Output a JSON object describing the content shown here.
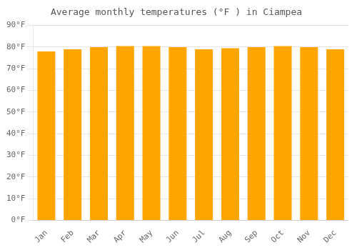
{
  "chart_data": {
    "type": "bar",
    "title": "Average monthly temperatures (°F ) in Ciampea",
    "categories": [
      "Jan",
      "Feb",
      "Mar",
      "Apr",
      "May",
      "Jun",
      "Jul",
      "Aug",
      "Sep",
      "Oct",
      "Nov",
      "Dec"
    ],
    "values": [
      78,
      79,
      80,
      80.5,
      80.5,
      80,
      79,
      79.5,
      80,
      80.5,
      80,
      79
    ],
    "color": "#FFA500",
    "ylim": [
      0,
      90
    ],
    "yticks": [
      {
        "value": 0,
        "label": "0°F"
      },
      {
        "value": 10,
        "label": "10°F"
      },
      {
        "value": 20,
        "label": "20°F"
      },
      {
        "value": 30,
        "label": "30°F"
      },
      {
        "value": 40,
        "label": "40°F"
      },
      {
        "value": 50,
        "label": "50°F"
      },
      {
        "value": 60,
        "label": "60°F"
      },
      {
        "value": 70,
        "label": "70°F"
      },
      {
        "value": 80,
        "label": "80°F"
      },
      {
        "value": 90,
        "label": "90°F"
      }
    ],
    "grid": true
  }
}
